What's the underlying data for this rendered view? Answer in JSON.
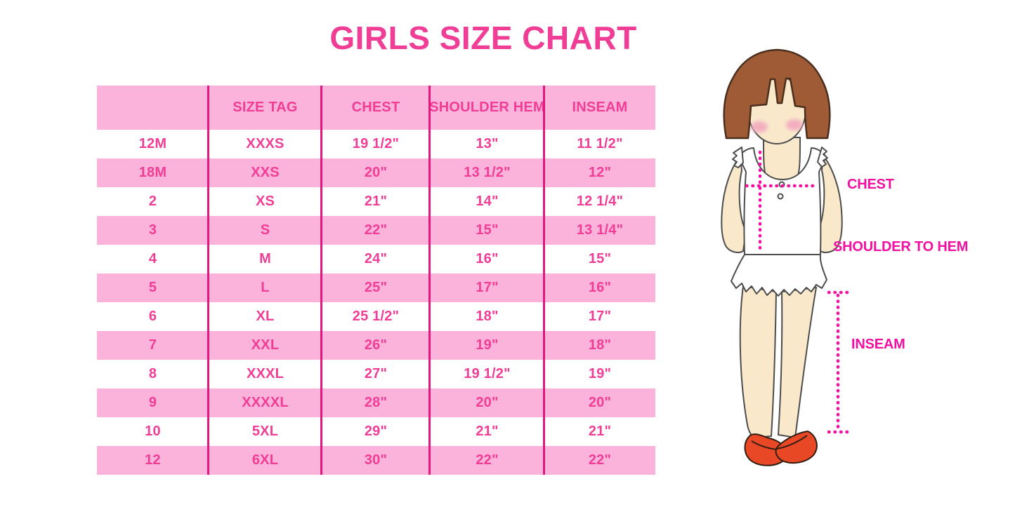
{
  "title": "GIRLS SIZE CHART",
  "colors": {
    "title_pink": "#F03E96",
    "table_row_pink": "#FBB2DB",
    "table_divider_magenta": "#E0187F",
    "table_text_pink": "#F03E96",
    "measure_label_magenta": "#F110A0",
    "dotted_line_pink": "#F410A0",
    "hair_brown": "#9E5B36",
    "skin": "#FAE8CB",
    "blush": "#F3AFC0",
    "shoe_red": "#E84826"
  },
  "chart_data": {
    "type": "table",
    "title": "GIRLS SIZE CHART",
    "columns": [
      "",
      "SIZE TAG",
      "CHEST",
      "SHOULDER HEM",
      "INSEAM"
    ],
    "rows": [
      [
        "12M",
        "XXXS",
        "19 1/2\"",
        "13\"",
        "11 1/2\""
      ],
      [
        "18M",
        "XXS",
        "20\"",
        "13 1/2\"",
        "12\""
      ],
      [
        "2",
        "XS",
        "21\"",
        "14\"",
        "12 1/4\""
      ],
      [
        "3",
        "S",
        "22\"",
        "15\"",
        "13 1/4\""
      ],
      [
        "4",
        "M",
        "24\"",
        "16\"",
        "15\""
      ],
      [
        "5",
        "L",
        "25\"",
        "17\"",
        "16\""
      ],
      [
        "6",
        "XL",
        "25 1/2\"",
        "18\"",
        "17\""
      ],
      [
        "7",
        "XXL",
        "26\"",
        "19\"",
        "18\""
      ],
      [
        "8",
        "XXXL",
        "27\"",
        "19 1/2\"",
        "19\""
      ],
      [
        "9",
        "XXXXL",
        "28\"",
        "20\"",
        "20\""
      ],
      [
        "10",
        "5XL",
        "29\"",
        "21\"",
        "21\""
      ],
      [
        "12",
        "6XL",
        "30\"",
        "22\"",
        "22\""
      ]
    ],
    "layout": {
      "row_fill_pattern": "alternating white / pink, header pink",
      "column_dividers": "magenta vertical lines between columns only"
    }
  },
  "figure": {
    "chest_label": "CHEST",
    "shoulder_to_hem_label": "SHOULDER TO HEM",
    "inseam_label": "INSEAM"
  }
}
